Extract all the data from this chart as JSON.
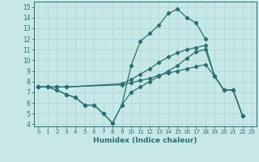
{
  "xlabel": "Humidex (Indice chaleur)",
  "xlim": [
    -0.5,
    23.5
  ],
  "ylim": [
    3.8,
    15.5
  ],
  "yticks": [
    4,
    5,
    6,
    7,
    8,
    9,
    10,
    11,
    12,
    13,
    14,
    15
  ],
  "xticks": [
    0,
    1,
    2,
    3,
    4,
    5,
    6,
    7,
    8,
    9,
    10,
    11,
    12,
    13,
    14,
    15,
    16,
    17,
    18,
    19,
    20,
    21,
    22,
    23
  ],
  "bg_color": "#c8e8e8",
  "line_color": "#2a7070",
  "grid_color": "#b0d8d8",
  "line1_x": [
    0,
    1,
    2,
    3,
    4,
    5,
    6,
    7,
    8,
    9,
    10,
    11,
    12,
    13,
    14,
    15,
    16,
    17,
    18
  ],
  "line1_y": [
    7.5,
    7.5,
    7.2,
    6.8,
    6.5,
    5.8,
    5.8,
    5.0,
    4.1,
    5.8,
    9.5,
    11.8,
    12.5,
    13.3,
    14.4,
    14.8,
    14.0,
    13.5,
    12.0
  ],
  "line2_x": [
    0,
    1,
    2,
    3,
    4,
    5,
    6,
    7,
    8,
    9,
    10,
    11,
    12,
    13,
    14,
    15,
    16,
    17,
    18,
    19,
    20,
    21,
    22
  ],
  "line2_y": [
    7.5,
    7.5,
    7.2,
    6.8,
    6.5,
    5.8,
    5.8,
    5.0,
    4.1,
    5.8,
    7.0,
    7.5,
    8.0,
    8.5,
    9.0,
    9.5,
    10.2,
    10.8,
    11.0,
    8.5,
    7.2,
    7.2,
    4.8
  ],
  "line3_x": [
    0,
    1,
    2,
    3,
    9,
    10,
    11,
    12,
    13,
    14,
    15,
    16,
    17,
    18,
    19,
    20,
    21,
    22
  ],
  "line3_y": [
    7.5,
    7.5,
    7.5,
    7.5,
    7.8,
    8.2,
    8.7,
    9.2,
    9.8,
    10.3,
    10.7,
    11.0,
    11.2,
    11.4,
    8.5,
    7.2,
    7.2,
    4.8
  ],
  "line4_x": [
    0,
    1,
    2,
    3,
    9,
    10,
    11,
    12,
    13,
    14,
    15,
    16,
    17,
    18,
    19,
    20,
    21,
    22
  ],
  "line4_y": [
    7.5,
    7.5,
    7.5,
    7.5,
    7.7,
    7.9,
    8.1,
    8.3,
    8.6,
    8.8,
    9.0,
    9.2,
    9.4,
    9.6,
    8.5,
    7.2,
    7.2,
    4.8
  ]
}
